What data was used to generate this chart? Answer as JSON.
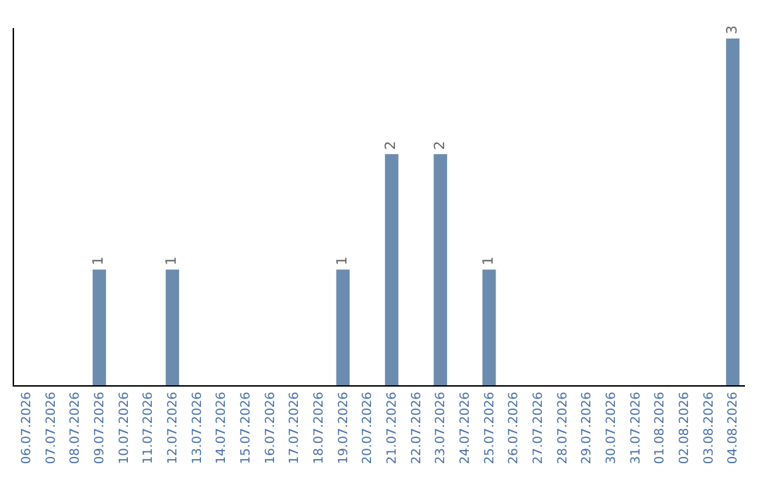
{
  "chart_data": {
    "type": "bar",
    "categories": [
      "06.07.2026",
      "07.07.2026",
      "08.07.2026",
      "09.07.2026",
      "10.07.2026",
      "11.07.2026",
      "12.07.2026",
      "13.07.2026",
      "14.07.2026",
      "15.07.2026",
      "16.07.2026",
      "17.07.2026",
      "18.07.2026",
      "19.07.2026",
      "20.07.2026",
      "21.07.2026",
      "22.07.2026",
      "23.07.2026",
      "24.07.2026",
      "25.07.2026",
      "26.07.2026",
      "27.07.2026",
      "28.07.2026",
      "29.07.2026",
      "30.07.2026",
      "31.07.2026",
      "01.08.2026",
      "02.08.2026",
      "03.08.2026",
      "04.08.2026"
    ],
    "values": [
      0,
      0,
      0,
      1,
      0,
      0,
      1,
      0,
      0,
      0,
      0,
      0,
      0,
      1,
      0,
      2,
      0,
      2,
      0,
      1,
      0,
      0,
      0,
      0,
      0,
      0,
      0,
      0,
      0,
      3
    ],
    "value_labels": [
      null,
      null,
      null,
      "1",
      null,
      null,
      "1",
      null,
      null,
      null,
      null,
      null,
      null,
      "1",
      null,
      "2",
      null,
      "2",
      null,
      "1",
      null,
      null,
      null,
      null,
      null,
      null,
      null,
      null,
      null,
      "3"
    ],
    "color": "#6b8cae"
  }
}
